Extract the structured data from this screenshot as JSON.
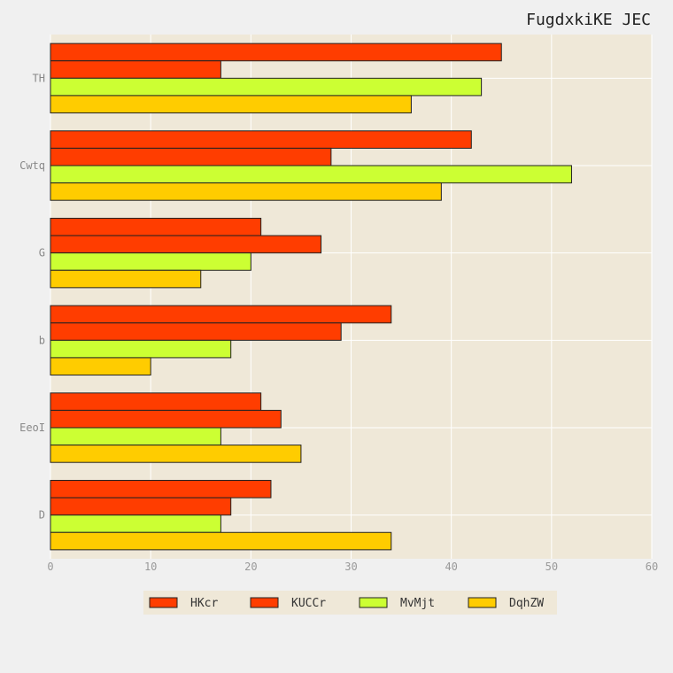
{
  "chart_data": {
    "type": "bar",
    "orientation": "horizontal",
    "title": "FugdxkiKE JEC",
    "xlabel": "",
    "ylabel": "",
    "categories": [
      "TH",
      "Cwtq",
      "G",
      "b",
      "EeoI",
      "D"
    ],
    "series": [
      {
        "name": "HKcr",
        "color": "#ff3d00",
        "values": [
          45,
          42,
          21,
          34,
          21,
          22
        ]
      },
      {
        "name": "KUCCr",
        "color": "#ff3d00",
        "values": [
          17,
          28,
          27,
          29,
          23,
          18
        ]
      },
      {
        "name": "MvMjt",
        "color": "#ccff33",
        "values": [
          43,
          52,
          20,
          18,
          17,
          17
        ]
      },
      {
        "name": "DqhZW",
        "color": "#ffcc00",
        "values": [
          36,
          39,
          15,
          10,
          25,
          34
        ]
      }
    ],
    "xlim": [
      0,
      60
    ],
    "xticks": [
      0,
      10,
      20,
      30,
      40,
      50,
      60
    ],
    "grid": true,
    "legend_position": "bottom-center",
    "colors": {
      "plot_background": "#efe8d8",
      "page_background": "#f0f0f0",
      "grid": "#ffffff",
      "bar_edge": "#222222"
    }
  }
}
